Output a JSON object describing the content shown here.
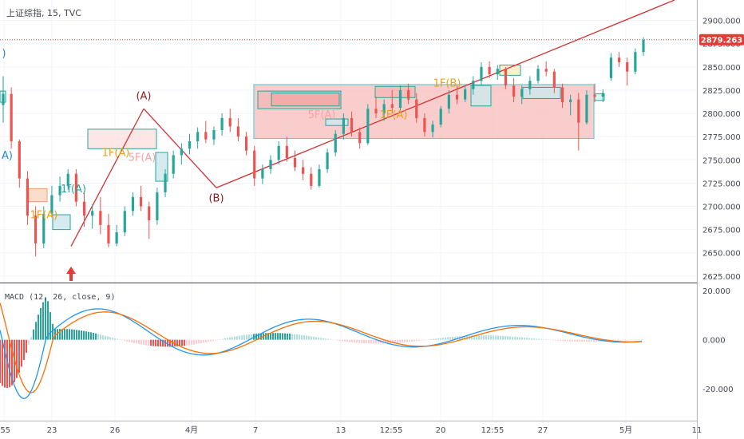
{
  "header": {
    "symbol": "上证综指",
    "timeframe": "15",
    "source": "TVC"
  },
  "chart_data": {
    "type": "candlestick",
    "price_axis": {
      "ylim": [
        2618,
        2922
      ],
      "ticks": [
        "2625.000",
        "2650.000",
        "2675.000",
        "2700.000",
        "2725.000",
        "2750.000",
        "2775.000",
        "2800.000",
        "2825.000",
        "2850.000",
        "2875.000",
        "2900.000"
      ],
      "last_price": "2879.263",
      "last_price_value": 2879.263,
      "last_price_color": "#e53935"
    },
    "time_axis": {
      "ticks": [
        ":55",
        "23",
        "26",
        "4月",
        "7",
        "13",
        "12:55",
        "20",
        "12:55",
        "27",
        "5月",
        "11"
      ]
    },
    "candles": [
      [
        2809,
        2840,
        2790,
        2821
      ],
      [
        2821,
        2828,
        2762,
        2770
      ],
      [
        2770,
        2772,
        2720,
        2730
      ],
      [
        2730,
        2738,
        2680,
        2690
      ],
      [
        2690,
        2700,
        2646,
        2660
      ],
      [
        2660,
        2700,
        2655,
        2692
      ],
      [
        2692,
        2722,
        2688,
        2712
      ],
      [
        2712,
        2732,
        2705,
        2722
      ],
      [
        2722,
        2740,
        2718,
        2735
      ],
      [
        2735,
        2740,
        2700,
        2705
      ],
      [
        2705,
        2715,
        2678,
        2690
      ],
      [
        2690,
        2702,
        2676,
        2695
      ],
      [
        2695,
        2710,
        2670,
        2680
      ],
      [
        2680,
        2692,
        2656,
        2660
      ],
      [
        2660,
        2680,
        2657,
        2672
      ],
      [
        2672,
        2700,
        2668,
        2695
      ],
      [
        2695,
        2715,
        2690,
        2710
      ],
      [
        2710,
        2722,
        2695,
        2700
      ],
      [
        2700,
        2705,
        2665,
        2685
      ],
      [
        2685,
        2720,
        2680,
        2715
      ],
      [
        2715,
        2740,
        2710,
        2735
      ],
      [
        2735,
        2760,
        2730,
        2755
      ],
      [
        2755,
        2768,
        2745,
        2762
      ],
      [
        2762,
        2778,
        2756,
        2770
      ],
      [
        2770,
        2785,
        2762,
        2780
      ],
      [
        2780,
        2792,
        2768,
        2772
      ],
      [
        2772,
        2786,
        2766,
        2782
      ],
      [
        2782,
        2800,
        2776,
        2795
      ],
      [
        2795,
        2805,
        2780,
        2786
      ],
      [
        2786,
        2795,
        2770,
        2775
      ],
      [
        2775,
        2780,
        2755,
        2760
      ],
      [
        2760,
        2765,
        2722,
        2730
      ],
      [
        2730,
        2745,
        2724,
        2740
      ],
      [
        2740,
        2755,
        2735,
        2750
      ],
      [
        2750,
        2770,
        2745,
        2765
      ],
      [
        2765,
        2775,
        2748,
        2752
      ],
      [
        2752,
        2760,
        2738,
        2742
      ],
      [
        2742,
        2750,
        2728,
        2735
      ],
      [
        2735,
        2742,
        2718,
        2722
      ],
      [
        2722,
        2745,
        2720,
        2740
      ],
      [
        2740,
        2762,
        2736,
        2758
      ],
      [
        2758,
        2782,
        2754,
        2778
      ],
      [
        2778,
        2800,
        2772,
        2795
      ],
      [
        2795,
        2802,
        2775,
        2780
      ],
      [
        2780,
        2785,
        2762,
        2768
      ],
      [
        2768,
        2810,
        2766,
        2805
      ],
      [
        2805,
        2818,
        2795,
        2800
      ],
      [
        2800,
        2815,
        2792,
        2810
      ],
      [
        2810,
        2825,
        2800,
        2806
      ],
      [
        2806,
        2830,
        2802,
        2825
      ],
      [
        2825,
        2832,
        2810,
        2815
      ],
      [
        2815,
        2822,
        2790,
        2795
      ],
      [
        2795,
        2800,
        2775,
        2780
      ],
      [
        2780,
        2792,
        2774,
        2788
      ],
      [
        2788,
        2808,
        2785,
        2805
      ],
      [
        2805,
        2825,
        2800,
        2820
      ],
      [
        2820,
        2830,
        2810,
        2815
      ],
      [
        2815,
        2830,
        2812,
        2826
      ],
      [
        2826,
        2840,
        2820,
        2835
      ],
      [
        2835,
        2855,
        2830,
        2850
      ],
      [
        2850,
        2856,
        2838,
        2842
      ],
      [
        2842,
        2852,
        2836,
        2848
      ],
      [
        2848,
        2850,
        2826,
        2830
      ],
      [
        2830,
        2838,
        2812,
        2818
      ],
      [
        2818,
        2830,
        2810,
        2826
      ],
      [
        2826,
        2840,
        2820,
        2835
      ],
      [
        2835,
        2852,
        2832,
        2848
      ],
      [
        2848,
        2856,
        2840,
        2845
      ],
      [
        2845,
        2848,
        2822,
        2828
      ],
      [
        2828,
        2832,
        2806,
        2812
      ],
      [
        2812,
        2820,
        2798,
        2815
      ],
      [
        2815,
        2822,
        2760,
        2790
      ],
      [
        2790,
        2825,
        2788,
        2820
      ],
      [
        2820,
        2832,
        2812,
        2818
      ],
      [
        2818,
        2826,
        2812,
        2822
      ],
      [
        2838,
        2865,
        2835,
        2860
      ],
      [
        2860,
        2866,
        2850,
        2855
      ],
      [
        2855,
        2860,
        2830,
        2845
      ],
      [
        2845,
        2870,
        2842,
        2866
      ],
      [
        2866,
        2882,
        2862,
        2879
      ]
    ],
    "annotations": [
      {
        "text": "(A)",
        "x": 180,
        "y": 2815,
        "color": "#8b1a1a"
      },
      {
        "text": "(B)",
        "x": 271,
        "y": 2705,
        "color": "#8b1a1a"
      },
      {
        "text": "1f(A)",
        "x": 92,
        "y": 2715,
        "color": "#26a69a"
      },
      {
        "text": "1F(A)",
        "x": 145,
        "y": 2754,
        "color": "#f39c12"
      },
      {
        "text": "5F(A)",
        "x": 178,
        "y": 2749,
        "color": "#f5a3a3"
      },
      {
        "text": "1F(A)",
        "x": 55,
        "y": 2687,
        "color": "#f39c12"
      },
      {
        "text": "5F(A)",
        "x": 403,
        "y": 2795,
        "color": "#f5a3a3"
      },
      {
        "text": "1F(A)",
        "x": 493,
        "y": 2795,
        "color": "#f39c12"
      },
      {
        "text": "1F(B)",
        "x": 560,
        "y": 2829,
        "color": "#f39c12"
      },
      {
        "text": ")",
        "x": 5,
        "y": 2861,
        "color": "#1e88e5"
      },
      {
        "text": "A)",
        "x": 9,
        "y": 2751,
        "color": "#1e88e5"
      }
    ],
    "macd": {
      "label": "MACD (12, 26, close, 9)",
      "ticks": [
        "20.000",
        "0.000",
        "-20.000"
      ],
      "ylim": [
        -33,
        23
      ],
      "macd_line_color": "#2196f3",
      "signal_line_color": "#ff6d00"
    }
  }
}
